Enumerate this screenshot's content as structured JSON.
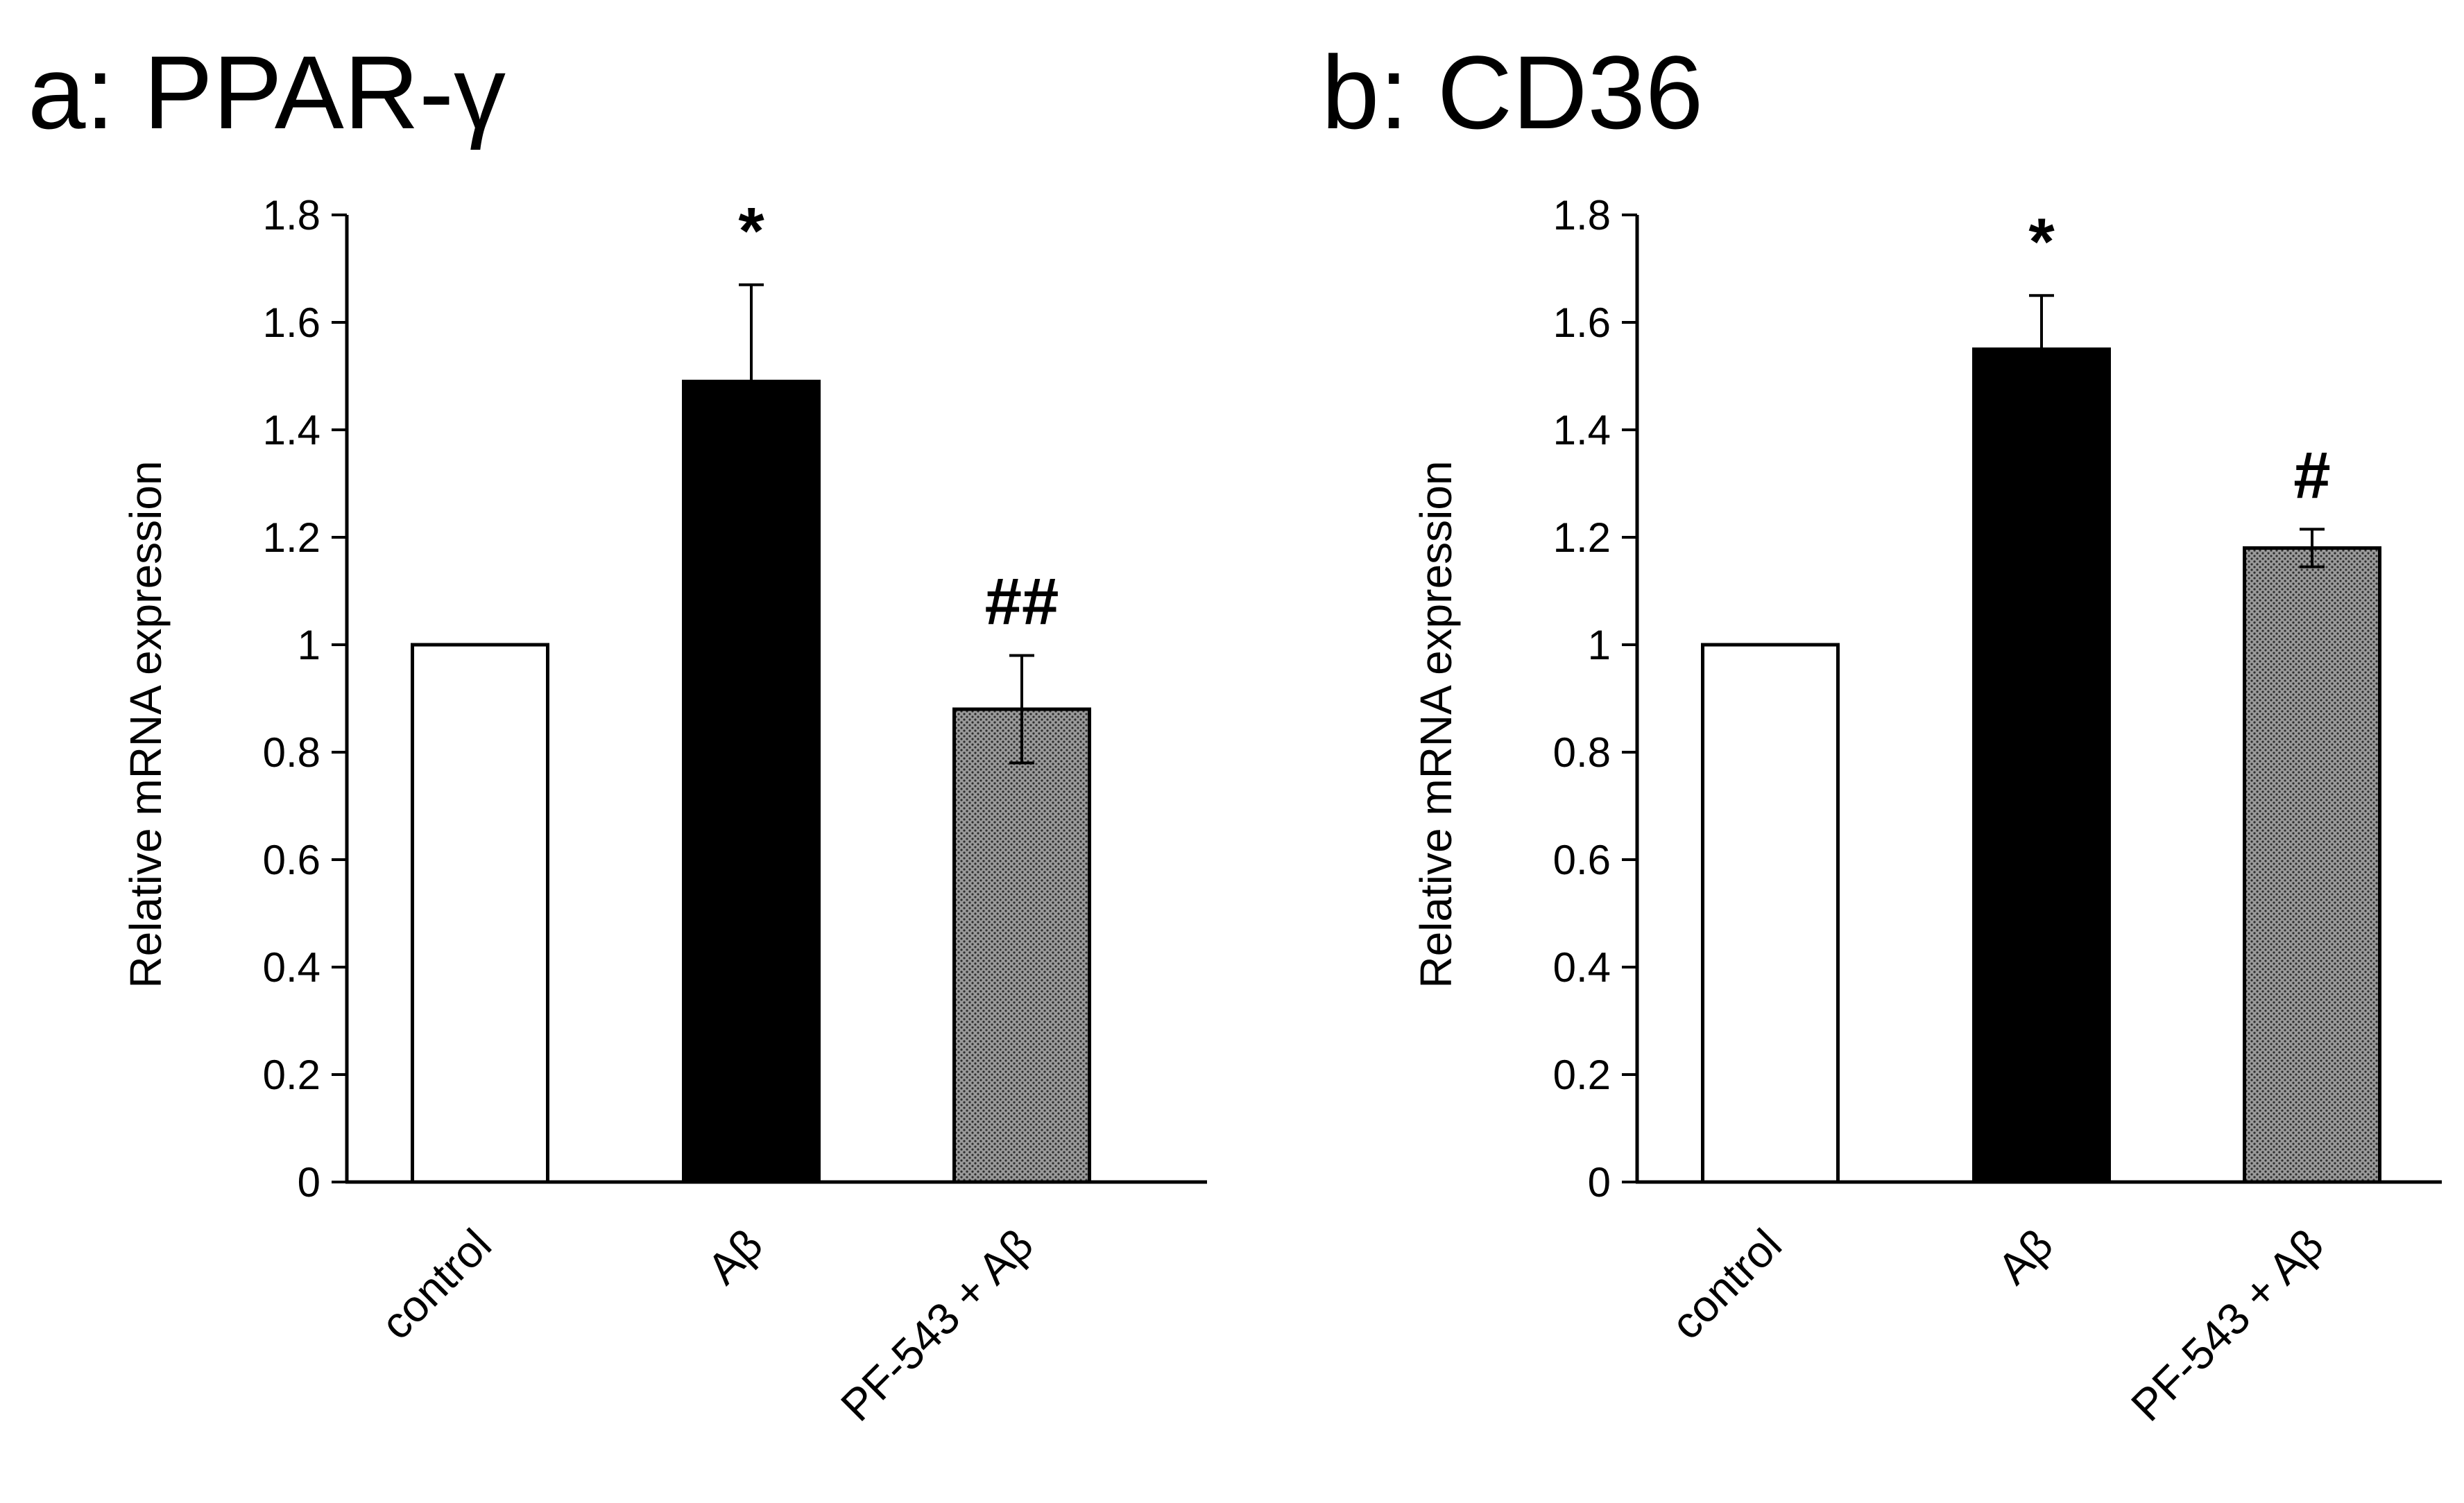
{
  "chart_data": [
    {
      "type": "bar",
      "title": "a: PPAR-γ",
      "xlabel": "",
      "ylabel": "Relative mRNA expression",
      "ylim": [
        0,
        1.8
      ],
      "yticks": [
        "0",
        "0.2",
        "0.4",
        "0.6",
        "0.8",
        "1",
        "1.2",
        "1.4",
        "1.6",
        "1.8"
      ],
      "categories": [
        "control",
        "Aβ",
        "PF-543 + Aβ"
      ],
      "values": [
        1.0,
        1.49,
        0.88
      ],
      "errors": [
        0.0,
        0.18,
        0.1
      ],
      "bar_styles": [
        "white",
        "black",
        "dotted-gray"
      ],
      "significance": [
        "",
        "*",
        "##"
      ],
      "grid": false
    },
    {
      "type": "bar",
      "title": "b: CD36",
      "xlabel": "",
      "ylabel": "Relative mRNA expression",
      "ylim": [
        0,
        1.8
      ],
      "yticks": [
        "0",
        "0.2",
        "0.4",
        "0.6",
        "0.8",
        "1",
        "1.2",
        "1.4",
        "1.6",
        "1.8"
      ],
      "categories": [
        "control",
        "Aβ",
        "PF-543 + Aβ"
      ],
      "values": [
        1.0,
        1.55,
        1.18
      ],
      "errors": [
        0.0,
        0.1,
        0.035
      ],
      "bar_styles": [
        "white",
        "black",
        "dotted-gray"
      ],
      "significance": [
        "",
        "*",
        "#"
      ],
      "grid": false
    }
  ],
  "colors": {
    "bar_white": "#ffffff",
    "bar_black": "#000000",
    "bar_gray": "#7a7a7a",
    "axis": "#000000"
  }
}
